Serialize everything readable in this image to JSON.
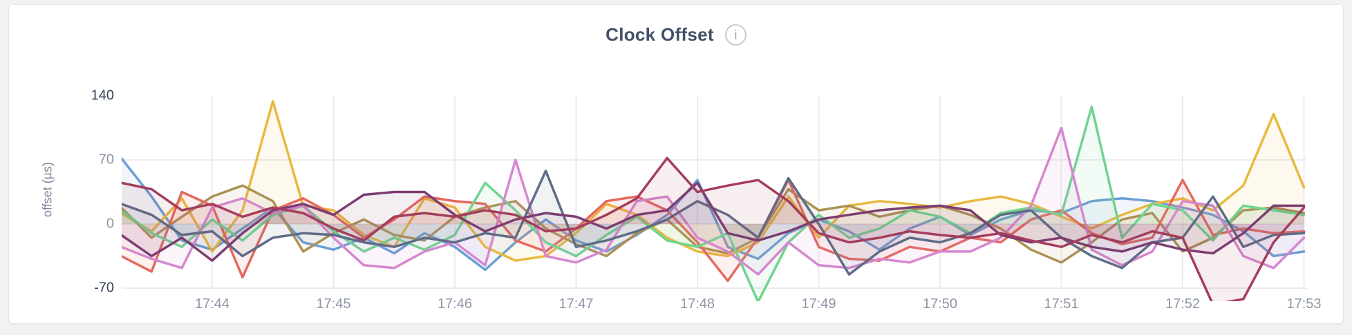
{
  "header": {
    "title": "Clock Offset",
    "info_icon_glyph": "i"
  },
  "colors": {
    "page_background": "#f2f2f4",
    "card_background": "#ffffff",
    "card_border": "#e3e4e7",
    "title_text": "#44506a",
    "tick_text": "#8d95a5",
    "tick_text_extreme": "#323e56",
    "gridline": "#ececee"
  },
  "chart_data": {
    "type": "line",
    "title": "Clock Offset",
    "xlabel": "",
    "ylabel": "offset (µs)",
    "y_ticks": [
      140,
      70,
      0,
      -70
    ],
    "x_ticks": [
      "17:44",
      "17:45",
      "17:46",
      "17:47",
      "17:48",
      "17:49",
      "17:50",
      "17:51",
      "17:52",
      "17:53"
    ],
    "ylim": [
      -84,
      164
    ],
    "x_start": "17:43:15",
    "x_end": "17:53:00",
    "sample_interval_sec": 15,
    "grid": true,
    "legend_position": "none",
    "fill_opacity": 0.09,
    "series": [
      {
        "id": "series-1",
        "color": "#6B9FD4",
        "values": [
          72,
          30,
          -18,
          -28,
          -5,
          18,
          -20,
          -28,
          -15,
          -32,
          -10,
          -25,
          -50,
          -20,
          5,
          -18,
          -30,
          -12,
          10,
          48,
          -25,
          -38,
          -10,
          5,
          -8,
          -28,
          -5,
          8,
          -12,
          5,
          15,
          12,
          25,
          28,
          25,
          18,
          10,
          -8,
          -35,
          -30
        ]
      },
      {
        "id": "series-2",
        "color": "#E8B93E",
        "values": [
          12,
          -8,
          28,
          -30,
          15,
          134,
          20,
          15,
          -12,
          -25,
          28,
          18,
          -25,
          -40,
          -35,
          -10,
          22,
          10,
          -15,
          -30,
          -35,
          -20,
          30,
          -15,
          20,
          25,
          22,
          18,
          25,
          30,
          22,
          8,
          -5,
          10,
          22,
          28,
          15,
          42,
          120,
          40
        ]
      },
      {
        "id": "series-3",
        "color": "#AC9155",
        "values": [
          18,
          -15,
          8,
          30,
          42,
          25,
          -30,
          -10,
          5,
          -12,
          -18,
          8,
          18,
          25,
          -5,
          -22,
          -35,
          -10,
          5,
          -25,
          -32,
          -15,
          38,
          15,
          20,
          8,
          15,
          20,
          10,
          -5,
          -28,
          -42,
          -20,
          5,
          12,
          -30,
          -15,
          15,
          18,
          12
        ]
      },
      {
        "id": "series-4",
        "color": "#E5695E",
        "values": [
          -35,
          -52,
          35,
          20,
          -58,
          15,
          28,
          10,
          -15,
          5,
          30,
          25,
          22,
          -18,
          -30,
          -5,
          25,
          30,
          15,
          -20,
          -62,
          -15,
          48,
          -25,
          -38,
          -40,
          -25,
          -30,
          -15,
          -20,
          5,
          15,
          -10,
          -22,
          -15,
          48,
          -12,
          -5,
          -10,
          -8
        ]
      },
      {
        "id": "series-5",
        "color": "#70D48E",
        "values": [
          15,
          -10,
          -25,
          5,
          -18,
          10,
          20,
          -8,
          -30,
          -15,
          -28,
          -12,
          45,
          15,
          -20,
          -35,
          -12,
          8,
          -18,
          -25,
          -10,
          -85,
          -20,
          10,
          -15,
          -5,
          15,
          8,
          -10,
          12,
          18,
          10,
          128,
          -15,
          22,
          15,
          -18,
          20,
          15,
          10
        ]
      },
      {
        "id": "series-6",
        "color": "#D687CF",
        "values": [
          -25,
          -38,
          -48,
          18,
          28,
          12,
          20,
          -15,
          -45,
          -48,
          -30,
          -20,
          -45,
          70,
          -35,
          -42,
          -28,
          25,
          30,
          -15,
          -30,
          -55,
          -20,
          -45,
          -48,
          -38,
          -42,
          -30,
          -30,
          -15,
          20,
          105,
          -28,
          -45,
          -30,
          25,
          20,
          -35,
          -48,
          -15
        ]
      },
      {
        "id": "series-7",
        "color": "#5F6C87",
        "values": [
          22,
          10,
          -12,
          -8,
          -35,
          -15,
          -10,
          -12,
          -20,
          -25,
          -15,
          -20,
          -10,
          -15,
          58,
          -25,
          -18,
          -8,
          5,
          25,
          10,
          -15,
          50,
          0,
          -55,
          -30,
          -15,
          -20,
          -10,
          10,
          15,
          -15,
          -35,
          -48,
          -20,
          -15,
          30,
          -25,
          -12,
          -10
        ]
      },
      {
        "id": "series-8",
        "color": "#7C3D72",
        "values": [
          -12,
          -35,
          -15,
          -40,
          -10,
          15,
          22,
          10,
          32,
          35,
          35,
          10,
          -8,
          5,
          12,
          8,
          -5,
          10,
          15,
          45,
          -10,
          -18,
          -8,
          5,
          10,
          15,
          18,
          20,
          15,
          -12,
          -20,
          -15,
          -25,
          -30,
          -20,
          -28,
          -32,
          -10,
          20,
          20
        ]
      },
      {
        "id": "series-9",
        "color": "#A43D5C",
        "values": [
          45,
          38,
          15,
          22,
          8,
          18,
          12,
          -5,
          -18,
          8,
          12,
          8,
          15,
          10,
          -8,
          -5,
          10,
          28,
          72,
          35,
          42,
          48,
          25,
          -10,
          -20,
          -15,
          -8,
          -12,
          -15,
          -10,
          -18,
          -25,
          -12,
          -20,
          -8,
          -15,
          -88,
          -82,
          -20,
          18
        ]
      }
    ]
  }
}
